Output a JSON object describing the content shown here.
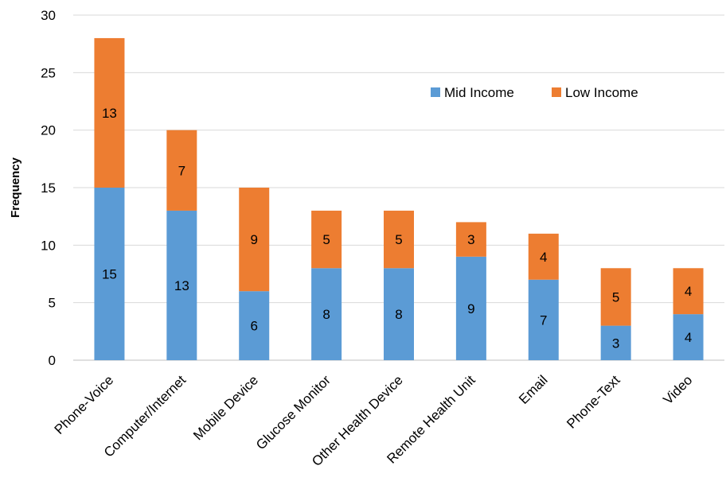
{
  "chart_data": {
    "type": "bar",
    "stacked": true,
    "title": "",
    "xlabel": "",
    "ylabel": "Frequency",
    "ylim": [
      0,
      30
    ],
    "yticks": [
      0,
      5,
      10,
      15,
      20,
      25,
      30
    ],
    "grid": true,
    "legend_position": "top-right",
    "categories": [
      "Phone-Voice",
      "Computer/Internet",
      "Mobile Device",
      "Glucose Monitor",
      "Other Health Device",
      "Remote Health Unit",
      "Email",
      "Phone-Text",
      "Video"
    ],
    "series": [
      {
        "name": "Mid Income",
        "color": "#5b9bd5",
        "values": [
          15,
          13,
          6,
          8,
          8,
          9,
          7,
          3,
          4
        ]
      },
      {
        "name": "Low Income",
        "color": "#ed7d31",
        "values": [
          13,
          7,
          9,
          5,
          5,
          3,
          4,
          5,
          4
        ]
      }
    ]
  }
}
